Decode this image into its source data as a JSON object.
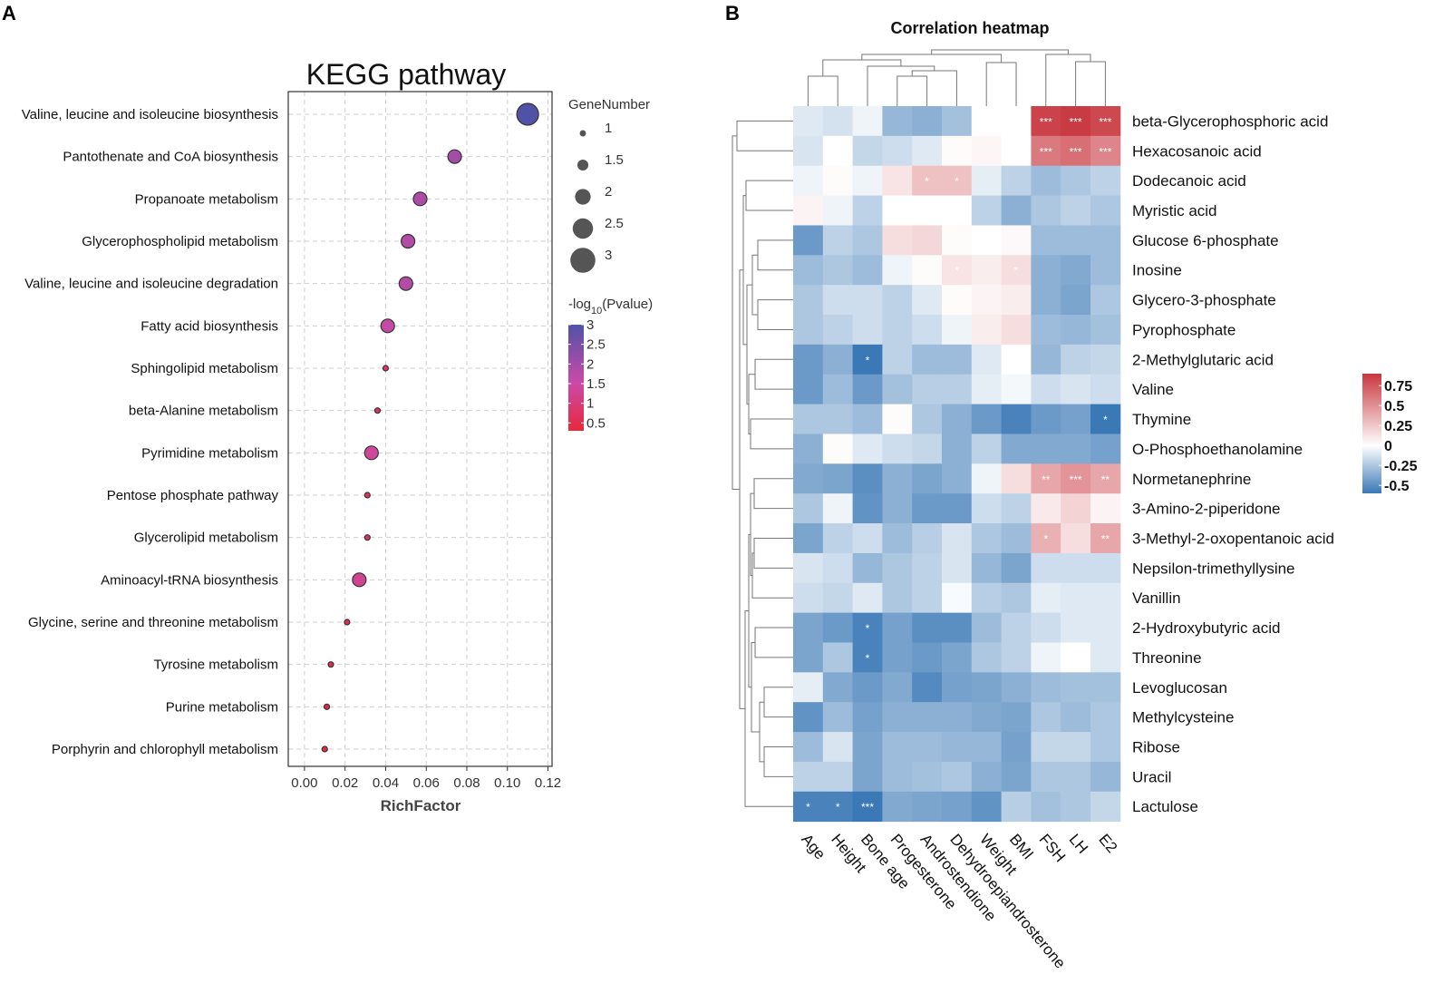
{
  "chart_data": [
    {
      "panel_label": "A",
      "type": "scatter",
      "title": "KEGG pathway",
      "xlabel": "RichFactor",
      "ylabel": "",
      "xlim": [
        -0.008,
        0.122
      ],
      "xticks": [
        0.0,
        0.02,
        0.04,
        0.06,
        0.08,
        0.1,
        0.12
      ],
      "xtick_labels": [
        "0.00",
        "0.02",
        "0.04",
        "0.06",
        "0.08",
        "0.10",
        "0.12"
      ],
      "grid": true,
      "size_legend": {
        "title": "GeneNumber",
        "values": [
          1,
          1.5,
          2,
          2.5,
          3
        ],
        "labels": [
          "1",
          "1.5",
          "2",
          "2.5",
          "3"
        ]
      },
      "color_legend": {
        "title_prefix": "-log",
        "title_sub": "10",
        "title_suffix": "(Pvalue)",
        "range": [
          0.3,
          3.0
        ],
        "ticks": [
          3,
          2.5,
          2,
          1.5,
          1,
          0.5
        ],
        "tick_labels": [
          "3",
          "2.5",
          "2",
          "1.5",
          "1",
          "0.5"
        ],
        "colors": [
          "#e8283c",
          "#cb4aa6",
          "#5052a8"
        ]
      },
      "points": [
        {
          "pathway": "Valine, leucine and isoleucine biosynthesis",
          "richfactor": 0.11,
          "gene_number": 3,
          "neglog10p": 3.0
        },
        {
          "pathway": "Pantothenate and CoA biosynthesis",
          "richfactor": 0.074,
          "gene_number": 2,
          "neglog10p": 2.0
        },
        {
          "pathway": "Propanoate metabolism",
          "richfactor": 0.057,
          "gene_number": 2,
          "neglog10p": 1.9
        },
        {
          "pathway": "Glycerophospholipid metabolism",
          "richfactor": 0.051,
          "gene_number": 2,
          "neglog10p": 1.8
        },
        {
          "pathway": "Valine, leucine and isoleucine degradation",
          "richfactor": 0.05,
          "gene_number": 2,
          "neglog10p": 1.8
        },
        {
          "pathway": "Fatty acid biosynthesis",
          "richfactor": 0.041,
          "gene_number": 2,
          "neglog10p": 1.6
        },
        {
          "pathway": "Sphingolipid metabolism",
          "richfactor": 0.04,
          "gene_number": 1,
          "neglog10p": 0.8
        },
        {
          "pathway": "beta-Alanine metabolism",
          "richfactor": 0.036,
          "gene_number": 1,
          "neglog10p": 0.7
        },
        {
          "pathway": "Pyrimidine metabolism",
          "richfactor": 0.033,
          "gene_number": 2,
          "neglog10p": 1.4
        },
        {
          "pathway": "Pentose phosphate pathway",
          "richfactor": 0.031,
          "gene_number": 1,
          "neglog10p": 0.65
        },
        {
          "pathway": "Glycerolipid metabolism",
          "richfactor": 0.031,
          "gene_number": 1,
          "neglog10p": 0.65
        },
        {
          "pathway": "Aminoacyl-tRNA biosynthesis",
          "richfactor": 0.027,
          "gene_number": 2,
          "neglog10p": 1.3
        },
        {
          "pathway": "Glycine, serine and threonine metabolism",
          "richfactor": 0.021,
          "gene_number": 1,
          "neglog10p": 0.5
        },
        {
          "pathway": "Tyrosine metabolism",
          "richfactor": 0.013,
          "gene_number": 1,
          "neglog10p": 0.4
        },
        {
          "pathway": "Purine metabolism",
          "richfactor": 0.011,
          "gene_number": 1,
          "neglog10p": 0.35
        },
        {
          "pathway": "Porphyrin and chlorophyll metabolism",
          "richfactor": 0.01,
          "gene_number": 1,
          "neglog10p": 0.35
        }
      ]
    },
    {
      "panel_label": "B",
      "type": "heatmap",
      "title": "Correlation heatmap",
      "columns": [
        "Age",
        "Height",
        "Bone age",
        "Progesterone",
        "Androstendione",
        "Dehydroepiandrosterone",
        "Weight",
        "BMI",
        "FSH",
        "LH",
        "E2"
      ],
      "rows": [
        "beta-Glycerophosphoric acid",
        "Hexacosanoic acid",
        "Dodecanoic acid",
        "Myristic acid",
        "Glucose 6-phosphate",
        "Inosine",
        "Glycero-3-phosphate",
        "Pyrophosphate",
        "2-Methylglutaric acid",
        "Valine",
        "Thymine",
        "O-Phosphoethanolamine",
        "Normetanephrine",
        "3-Amino-2-piperidone",
        "3-Methyl-2-oxopentanoic acid",
        "Nepsilon-trimethyllysine",
        "Vanillin",
        "2-Hydroxybutyric acid",
        "Threonine",
        "Levoglucosan",
        "Methylcysteine",
        "Ribose",
        "Uracil",
        "Lactulose"
      ],
      "values": [
        [
          -0.1,
          -0.13,
          -0.05,
          -0.32,
          -0.35,
          -0.28,
          0.0,
          0.0,
          0.85,
          0.88,
          0.82
        ],
        [
          -0.12,
          0.0,
          -0.18,
          -0.15,
          -0.1,
          0.02,
          0.04,
          0.0,
          0.6,
          0.65,
          0.55
        ],
        [
          -0.05,
          0.02,
          -0.05,
          0.12,
          0.28,
          0.28,
          -0.08,
          -0.2,
          -0.3,
          -0.25,
          -0.2
        ],
        [
          0.05,
          -0.05,
          -0.2,
          0.0,
          0.0,
          0.0,
          -0.2,
          -0.35,
          -0.25,
          -0.2,
          -0.25
        ],
        [
          -0.45,
          -0.2,
          -0.25,
          0.15,
          0.18,
          0.02,
          0.0,
          0.03,
          -0.3,
          -0.3,
          -0.3
        ],
        [
          -0.3,
          -0.25,
          -0.3,
          -0.05,
          0.02,
          0.12,
          0.08,
          0.15,
          -0.35,
          -0.38,
          -0.3
        ],
        [
          -0.25,
          -0.15,
          -0.15,
          -0.2,
          -0.1,
          0.02,
          0.05,
          0.08,
          -0.35,
          -0.4,
          -0.25
        ],
        [
          -0.25,
          -0.2,
          -0.15,
          -0.2,
          -0.15,
          -0.05,
          0.08,
          0.15,
          -0.3,
          -0.32,
          -0.28
        ],
        [
          -0.45,
          -0.35,
          -0.6,
          -0.2,
          -0.3,
          -0.3,
          -0.1,
          0.0,
          -0.32,
          -0.2,
          -0.18
        ],
        [
          -0.45,
          -0.3,
          -0.45,
          -0.28,
          -0.22,
          -0.22,
          -0.08,
          -0.03,
          -0.15,
          -0.12,
          -0.15
        ],
        [
          -0.25,
          -0.25,
          -0.3,
          0.02,
          -0.25,
          -0.35,
          -0.45,
          -0.55,
          -0.45,
          -0.42,
          -0.62
        ],
        [
          -0.35,
          0.02,
          -0.1,
          -0.15,
          -0.18,
          -0.35,
          -0.2,
          -0.38,
          -0.38,
          -0.38,
          -0.42
        ],
        [
          -0.38,
          -0.4,
          -0.5,
          -0.35,
          -0.4,
          -0.35,
          -0.05,
          0.15,
          0.4,
          0.48,
          0.4
        ],
        [
          -0.25,
          -0.05,
          -0.48,
          -0.35,
          -0.45,
          -0.45,
          -0.15,
          -0.2,
          0.1,
          0.2,
          0.05
        ],
        [
          -0.4,
          -0.2,
          -0.15,
          -0.3,
          -0.22,
          -0.12,
          -0.25,
          -0.3,
          0.35,
          0.15,
          0.4
        ],
        [
          -0.12,
          -0.15,
          -0.32,
          -0.25,
          -0.2,
          -0.12,
          -0.32,
          -0.4,
          -0.15,
          -0.15,
          -0.15
        ],
        [
          -0.15,
          -0.18,
          -0.1,
          -0.25,
          -0.2,
          -0.02,
          -0.22,
          -0.25,
          -0.08,
          -0.1,
          -0.1
        ],
        [
          -0.4,
          -0.45,
          -0.55,
          -0.42,
          -0.5,
          -0.5,
          -0.3,
          -0.2,
          -0.15,
          -0.1,
          -0.1
        ],
        [
          -0.4,
          -0.25,
          -0.55,
          -0.42,
          -0.45,
          -0.4,
          -0.25,
          -0.2,
          -0.05,
          0.0,
          -0.1
        ],
        [
          -0.08,
          -0.38,
          -0.45,
          -0.38,
          -0.52,
          -0.42,
          -0.4,
          -0.35,
          -0.3,
          -0.28,
          -0.28
        ],
        [
          -0.48,
          -0.3,
          -0.42,
          -0.35,
          -0.35,
          -0.35,
          -0.38,
          -0.4,
          -0.25,
          -0.3,
          -0.25
        ],
        [
          -0.3,
          -0.12,
          -0.4,
          -0.3,
          -0.3,
          -0.32,
          -0.32,
          -0.42,
          -0.18,
          -0.18,
          -0.25
        ],
        [
          -0.2,
          -0.2,
          -0.4,
          -0.3,
          -0.28,
          -0.25,
          -0.35,
          -0.4,
          -0.25,
          -0.25,
          -0.32
        ],
        [
          -0.55,
          -0.55,
          -0.75,
          -0.38,
          -0.4,
          -0.42,
          -0.48,
          -0.22,
          -0.28,
          -0.25,
          -0.18
        ]
      ],
      "significance": [
        [
          "",
          "",
          "",
          "",
          "",
          "",
          "",
          "",
          "***",
          "***",
          "***"
        ],
        [
          "",
          "",
          "",
          "",
          "",
          "",
          "",
          "",
          "***",
          "***",
          "***"
        ],
        [
          "",
          "",
          "",
          "",
          "*",
          "*",
          "",
          "",
          "",
          "",
          ""
        ],
        [
          "",
          "",
          "",
          "",
          "",
          "",
          "",
          "",
          "",
          "",
          ""
        ],
        [
          "",
          "",
          "",
          "",
          "",
          "",
          "",
          "",
          "",
          "",
          ""
        ],
        [
          "",
          "",
          "",
          "",
          "",
          "*",
          "",
          "*",
          "",
          "",
          ""
        ],
        [
          "",
          "",
          "",
          "",
          "",
          "",
          "",
          "",
          "",
          "",
          ""
        ],
        [
          "",
          "",
          "",
          "",
          "",
          "",
          "",
          "",
          "",
          "",
          ""
        ],
        [
          "",
          "",
          "*",
          "",
          "",
          "",
          "",
          "",
          "",
          "",
          ""
        ],
        [
          "",
          "",
          "",
          "",
          "",
          "",
          "",
          "",
          "",
          "",
          ""
        ],
        [
          "",
          "",
          "",
          "",
          "",
          "",
          "",
          "",
          "",
          "",
          "*"
        ],
        [
          "",
          "",
          "",
          "",
          "",
          "",
          "",
          "",
          "",
          "",
          ""
        ],
        [
          "",
          "",
          "",
          "",
          "",
          "",
          "",
          "",
          "**",
          "***",
          "**"
        ],
        [
          "",
          "",
          "",
          "",
          "",
          "",
          "",
          "",
          "",
          "",
          ""
        ],
        [
          "",
          "",
          "",
          "",
          "",
          "",
          "",
          "",
          "*",
          "",
          "**"
        ],
        [
          "",
          "",
          "",
          "",
          "",
          "",
          "",
          "",
          "",
          "",
          ""
        ],
        [
          "",
          "",
          "",
          "",
          "",
          "",
          "",
          "",
          "",
          "",
          ""
        ],
        [
          "",
          "",
          "*",
          "",
          "",
          "",
          "",
          "",
          "",
          "",
          ""
        ],
        [
          "",
          "",
          "*",
          "",
          "",
          "",
          "",
          "",
          "",
          "",
          ""
        ],
        [
          "",
          "",
          "",
          "",
          "",
          "",
          "",
          "",
          "",
          "",
          ""
        ],
        [
          "",
          "",
          "",
          "",
          "",
          "",
          "",
          "",
          "",
          "",
          ""
        ],
        [
          "",
          "",
          "",
          "",
          "",
          "",
          "",
          "",
          "",
          "",
          ""
        ],
        [
          "",
          "",
          "",
          "",
          "",
          "",
          "",
          "",
          "",
          "",
          ""
        ],
        [
          "*",
          "*",
          "***",
          "",
          "",
          "",
          "",
          "",
          "",
          "",
          ""
        ]
      ],
      "color_scale": {
        "range": [
          -0.6,
          0.9
        ],
        "ticks": [
          0.75,
          0.5,
          0.25,
          0,
          -0.25,
          -0.5
        ],
        "tick_labels": [
          "0.75",
          "0.5",
          "0.25",
          "0",
          "-0.25",
          "-0.5"
        ],
        "low_color": "#3a78b6",
        "mid_color": "#ffffff",
        "high_color": "#c8373f"
      }
    }
  ]
}
